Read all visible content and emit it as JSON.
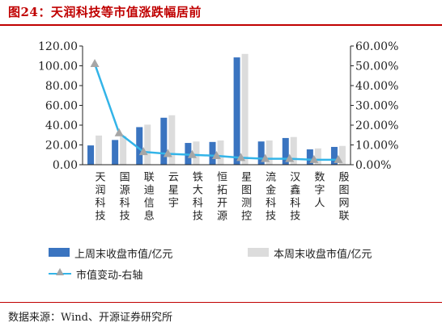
{
  "title": "图24：天润科技等市值涨跌幅居前",
  "source": "数据来源：Wind、开源证券研究所",
  "colors": {
    "prev_bar": "#3a74c0",
    "curr_bar": "#dcdcdc",
    "line": "#33b4e8",
    "marker": "#a6a6a6",
    "accent": "#c00000"
  },
  "chart_data": {
    "type": "bar",
    "categories": [
      "天润科技",
      "国源科技",
      "联迪信息",
      "云星宇",
      "铁大科技",
      "恒拓开源",
      "星图测控",
      "流金科技",
      "汉鑫科技",
      "数字人",
      "殷图网联"
    ],
    "series": [
      {
        "name": "上周末收盘市值/亿元",
        "kind": "bar",
        "axis": "left",
        "values": [
          19.5,
          25.0,
          38.0,
          47.5,
          22.0,
          23.0,
          108.5,
          23.5,
          27.0,
          15.5,
          18.0
        ]
      },
      {
        "name": "本周末收盘市值/亿元",
        "kind": "bar",
        "axis": "left",
        "values": [
          29.5,
          29.0,
          40.5,
          50.0,
          23.5,
          24.5,
          112.0,
          24.5,
          28.0,
          16.5,
          19.0
        ]
      },
      {
        "name": "市值变动-右轴",
        "kind": "line",
        "axis": "right",
        "values": [
          51.0,
          16.0,
          6.5,
          5.5,
          5.0,
          4.5,
          3.5,
          3.0,
          3.0,
          2.5,
          2.5
        ]
      }
    ],
    "y_left": {
      "min": 0,
      "max": 120,
      "ticks": [
        "0.00",
        "20.00",
        "40.00",
        "60.00",
        "80.00",
        "100.00",
        "120.00"
      ]
    },
    "y_right": {
      "min": 0,
      "max": 60,
      "ticks": [
        "0.00%",
        "10.00%",
        "20.00%",
        "30.00%",
        "40.00%",
        "50.00%",
        "60.00%"
      ]
    },
    "grid": false,
    "legend_position": "bottom"
  }
}
